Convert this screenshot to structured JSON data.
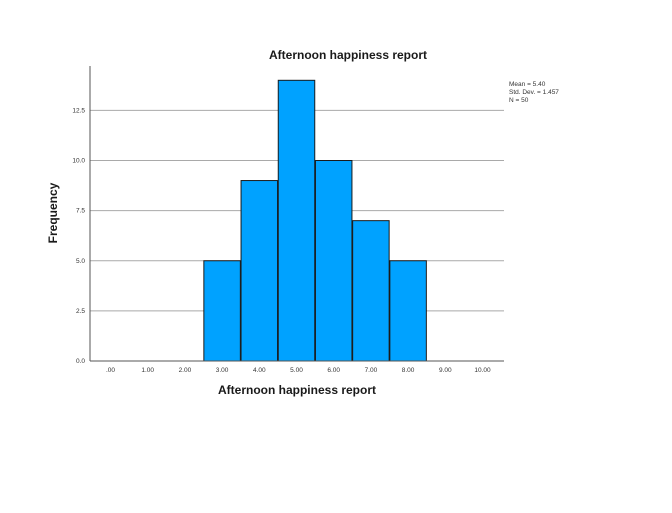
{
  "chart_data": {
    "type": "bar",
    "title": "Afternoon happiness report",
    "xlabel": "Afternoon happiness report",
    "ylabel": "Frequency",
    "categories": [
      ".00",
      "1.00",
      "2.00",
      "3.00",
      "4.00",
      "5.00",
      "6.00",
      "7.00",
      "8.00",
      "9.00",
      "10.00"
    ],
    "values": [
      0,
      0,
      0,
      5,
      9,
      14,
      10,
      7,
      5,
      0,
      0
    ],
    "y_ticks": [
      "0.0",
      "2.5",
      "5.0",
      "7.5",
      "10.0",
      "12.5"
    ],
    "y_tick_values": [
      0,
      2.5,
      5,
      7.5,
      10,
      12.5
    ],
    "ylim": [
      0,
      14.5
    ],
    "grid": "horizontal",
    "bar_color": "#00A2FF",
    "stats": {
      "mean": "Mean = 5.40",
      "std": "Std. Dev. =   1.457",
      "n": "N = 50"
    }
  }
}
